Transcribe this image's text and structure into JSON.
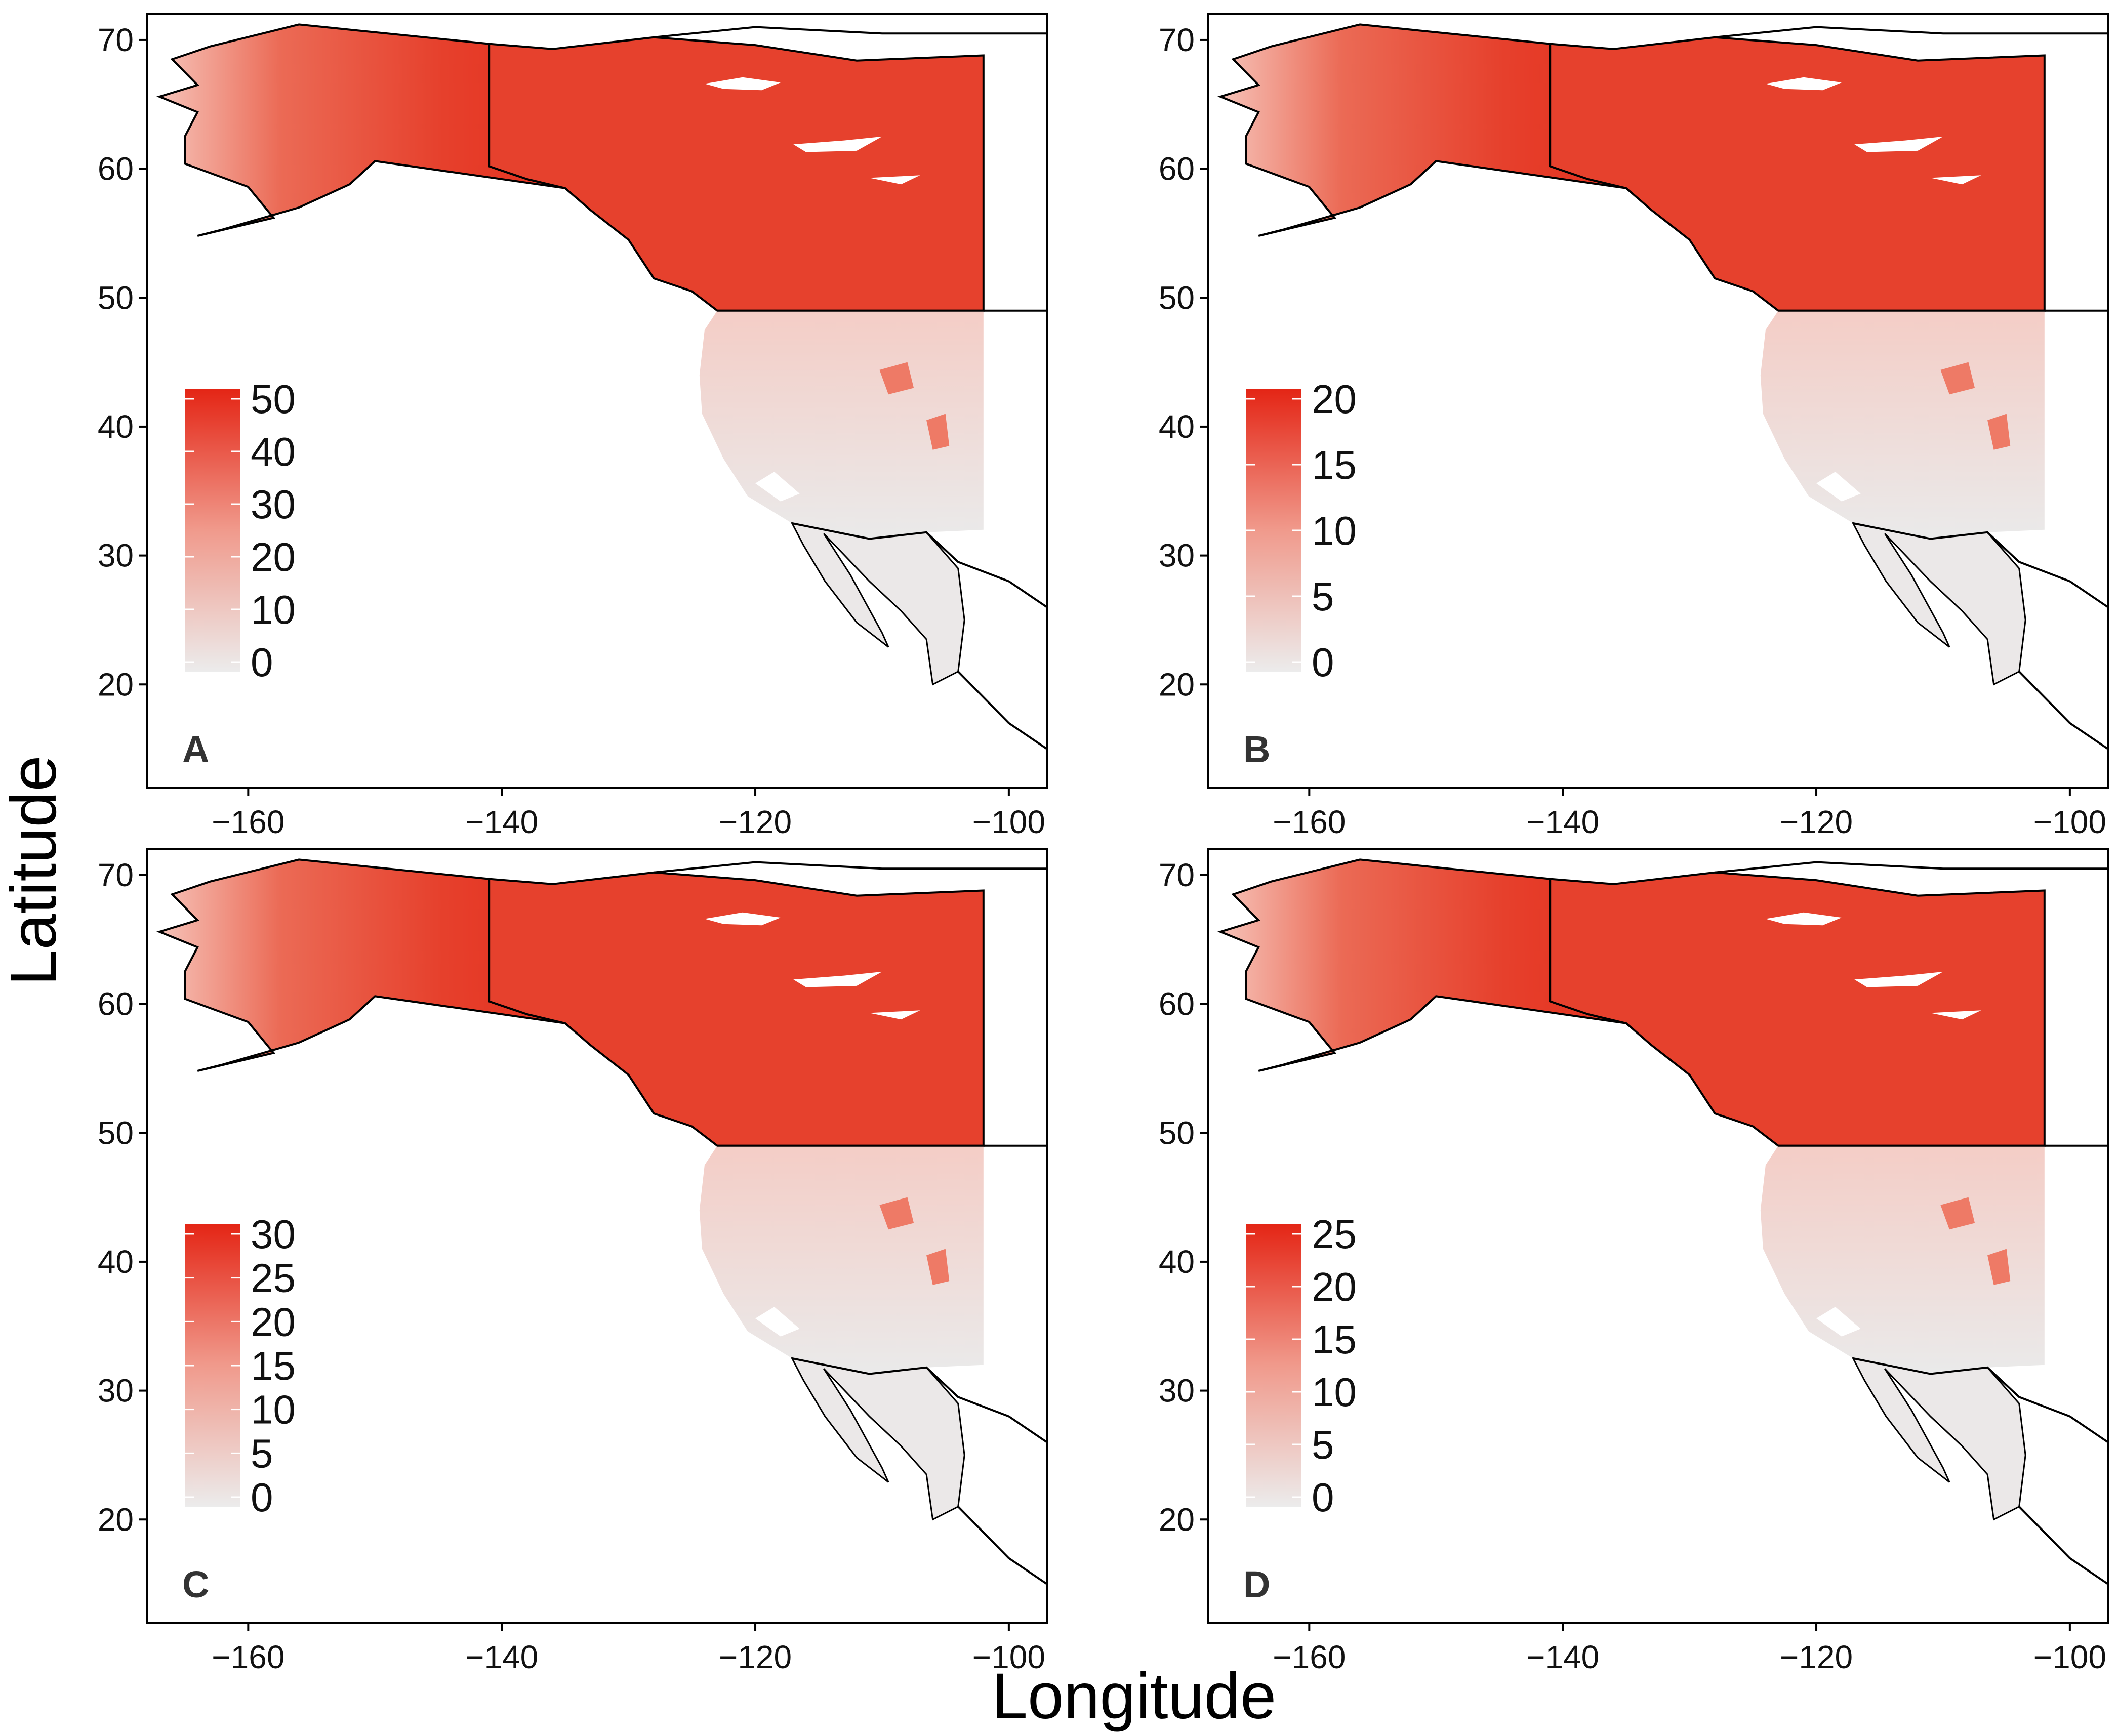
{
  "axes": {
    "xlabel": "Longitude",
    "ylabel": "Latitude",
    "xticks": [
      "−160",
      "−140",
      "−120",
      "−100"
    ],
    "yticks": [
      "70",
      "60",
      "50",
      "40",
      "30",
      "20"
    ]
  },
  "colors": {
    "low": "#ececec",
    "high": "#e42515",
    "border": "#000000",
    "lake": "#ffffff"
  },
  "panels": [
    {
      "letter": "A",
      "legend_labels": [
        "50",
        "40",
        "30",
        "20",
        "10",
        "0"
      ]
    },
    {
      "letter": "B",
      "legend_labels": [
        "20",
        "15",
        "10",
        "5",
        "0"
      ]
    },
    {
      "letter": "C",
      "legend_labels": [
        "30",
        "25",
        "20",
        "15",
        "10",
        "5",
        "0"
      ]
    },
    {
      "letter": "D",
      "legend_labels": [
        "25",
        "20",
        "15",
        "10",
        "5",
        "0"
      ]
    }
  ]
}
